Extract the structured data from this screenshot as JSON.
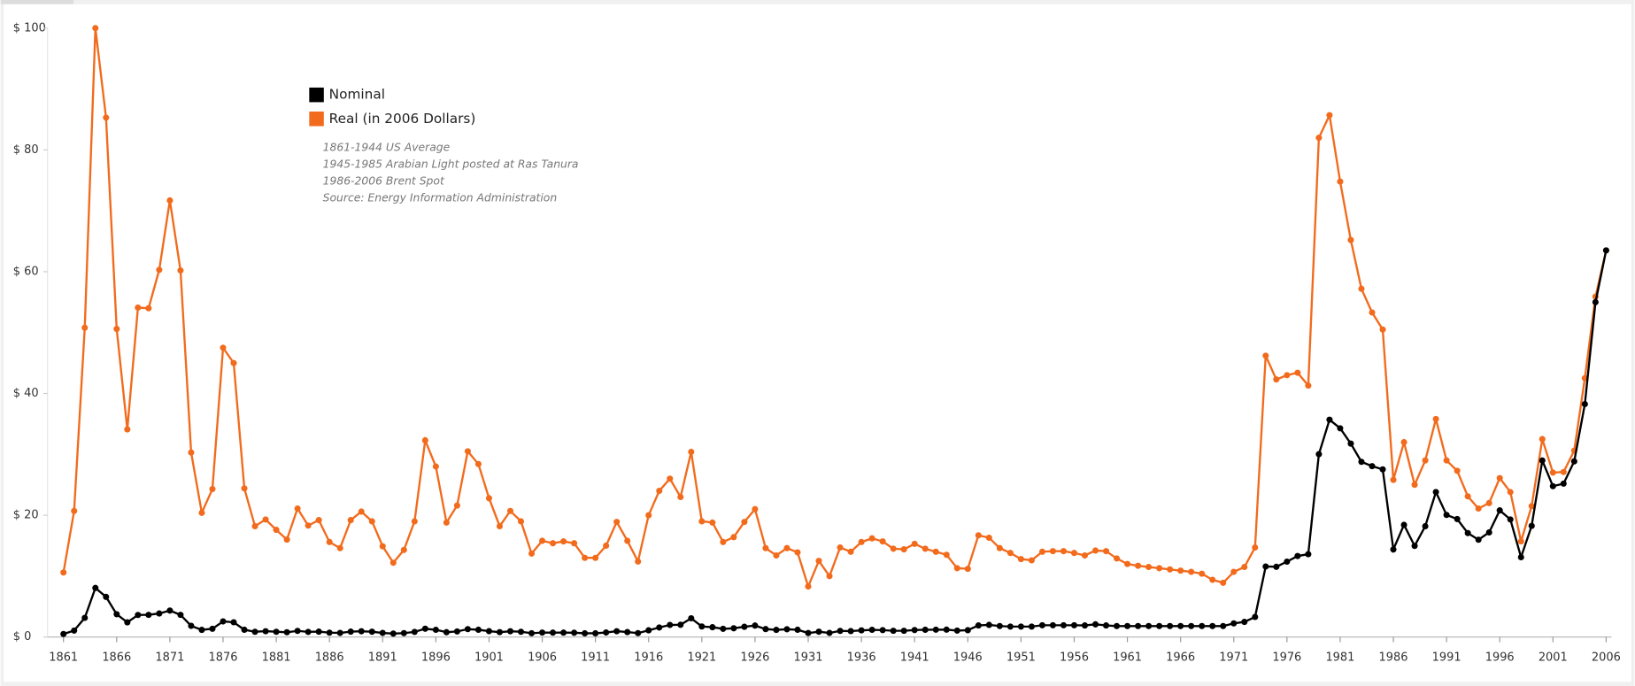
{
  "chart_data": {
    "type": "line",
    "annotations": [
      "1861-1944 US Average",
      "1945-1985 Arabian Light posted at Ras Tanura",
      "1986-2006 Brent Spot",
      "Source: Energy Information Administration"
    ],
    "x": [
      1861,
      1862,
      1863,
      1864,
      1865,
      1866,
      1867,
      1868,
      1869,
      1870,
      1871,
      1872,
      1873,
      1874,
      1875,
      1876,
      1877,
      1878,
      1879,
      1880,
      1881,
      1882,
      1883,
      1884,
      1885,
      1886,
      1887,
      1888,
      1889,
      1890,
      1891,
      1892,
      1893,
      1894,
      1895,
      1896,
      1897,
      1898,
      1899,
      1900,
      1901,
      1902,
      1903,
      1904,
      1905,
      1906,
      1907,
      1908,
      1909,
      1910,
      1911,
      1912,
      1913,
      1914,
      1915,
      1916,
      1917,
      1918,
      1919,
      1920,
      1921,
      1922,
      1923,
      1924,
      1925,
      1926,
      1927,
      1928,
      1929,
      1930,
      1931,
      1932,
      1933,
      1934,
      1935,
      1936,
      1937,
      1938,
      1939,
      1940,
      1941,
      1942,
      1943,
      1944,
      1945,
      1946,
      1947,
      1948,
      1949,
      1950,
      1951,
      1952,
      1953,
      1954,
      1955,
      1956,
      1957,
      1958,
      1959,
      1960,
      1961,
      1962,
      1963,
      1964,
      1965,
      1966,
      1967,
      1968,
      1969,
      1970,
      1971,
      1972,
      1973,
      1974,
      1975,
      1976,
      1977,
      1978,
      1979,
      1980,
      1981,
      1982,
      1983,
      1984,
      1985,
      1986,
      1987,
      1988,
      1989,
      1990,
      1991,
      1992,
      1993,
      1994,
      1995,
      1996,
      1997,
      1998,
      1999,
      2000,
      2001,
      2002,
      2003,
      2004,
      2005,
      2006
    ],
    "series": [
      {
        "name": "Nominal",
        "color": "#000000",
        "values": [
          0.49,
          1.05,
          3.15,
          8.06,
          6.59,
          3.74,
          2.41,
          3.62,
          3.64,
          3.86,
          4.34,
          3.64,
          1.83,
          1.17,
          1.35,
          2.56,
          2.42,
          1.19,
          0.86,
          0.95,
          0.86,
          0.78,
          1.0,
          0.84,
          0.88,
          0.71,
          0.67,
          0.88,
          0.94,
          0.87,
          0.67,
          0.56,
          0.64,
          0.84,
          1.36,
          1.18,
          0.79,
          0.91,
          1.29,
          1.19,
          0.96,
          0.8,
          0.94,
          0.86,
          0.62,
          0.73,
          0.72,
          0.72,
          0.7,
          0.61,
          0.61,
          0.74,
          0.95,
          0.81,
          0.64,
          1.1,
          1.56,
          1.98,
          2.01,
          3.07,
          1.73,
          1.61,
          1.34,
          1.43,
          1.68,
          1.88,
          1.3,
          1.17,
          1.27,
          1.19,
          0.65,
          0.87,
          0.67,
          1.0,
          0.97,
          1.09,
          1.18,
          1.13,
          1.02,
          1.02,
          1.14,
          1.19,
          1.2,
          1.21,
          1.05,
          1.12,
          1.9,
          1.99,
          1.8,
          1.71,
          1.71,
          1.71,
          1.93,
          1.93,
          1.93,
          1.93,
          1.9,
          2.08,
          1.9,
          1.8,
          1.8,
          1.8,
          1.8,
          1.8,
          1.8,
          1.8,
          1.8,
          1.8,
          1.8,
          1.8,
          2.24,
          2.48,
          3.29,
          11.58,
          11.53,
          12.38,
          13.3,
          13.6,
          30.03,
          35.69,
          34.28,
          31.76,
          28.77,
          28.06,
          27.53,
          14.38,
          18.42,
          14.96,
          18.2,
          23.81,
          20.05,
          19.37,
          17.07,
          15.98,
          17.18,
          20.8,
          19.3,
          13.11,
          18.25,
          28.98,
          24.77,
          25.19,
          28.85,
          38.26,
          55.0,
          63.5
        ]
      },
      {
        "name": "Real (in 2006 Dollars)",
        "color": "#f26b1d",
        "values": [
          10.6,
          20.7,
          50.8,
          100,
          85.3,
          50.6,
          34.1,
          54.1,
          54.0,
          60.3,
          71.7,
          60.2,
          30.3,
          20.4,
          24.3,
          47.5,
          45.0,
          24.4,
          18.2,
          19.3,
          17.6,
          16.0,
          21.1,
          18.3,
          19.2,
          15.6,
          14.6,
          19.2,
          20.6,
          19.0,
          14.9,
          12.2,
          14.3,
          19.0,
          32.3,
          28.0,
          18.8,
          21.6,
          30.5,
          28.4,
          22.8,
          18.2,
          20.7,
          19.0,
          13.7,
          15.8,
          15.4,
          15.7,
          15.4,
          13.0,
          13.0,
          15.0,
          18.9,
          15.8,
          12.4,
          20.0,
          24.0,
          26.0,
          23.0,
          30.4,
          19.0,
          18.8,
          15.6,
          16.4,
          18.9,
          21.0,
          14.6,
          13.4,
          14.6,
          13.9,
          8.3,
          12.5,
          10.0,
          14.7,
          14.0,
          15.6,
          16.2,
          15.7,
          14.5,
          14.4,
          15.3,
          14.5,
          14.0,
          13.5,
          11.3,
          11.2,
          16.7,
          16.3,
          14.6,
          13.8,
          12.8,
          12.6,
          14.0,
          14.1,
          14.1,
          13.8,
          13.4,
          14.2,
          14.1,
          12.9,
          12.0,
          11.7,
          11.5,
          11.3,
          11.1,
          10.9,
          10.7,
          10.4,
          9.4,
          8.9,
          10.7,
          11.5,
          14.7,
          46.2,
          42.3,
          43.0,
          43.4,
          41.3,
          82.0,
          85.7,
          74.8,
          65.2,
          57.2,
          53.3,
          50.5,
          25.8,
          32.0,
          25.0,
          29.0,
          35.8,
          29.0,
          27.3,
          23.1,
          21.1,
          22.0,
          26.1,
          23.8,
          15.7,
          21.5,
          32.5,
          27.0,
          27.1,
          30.6,
          42.5,
          55.9,
          63.5
        ]
      }
    ],
    "xlim": [
      1859.5,
      2006.5
    ],
    "xticks": [
      1861,
      1866,
      1871,
      1876,
      1881,
      1886,
      1891,
      1896,
      1901,
      1906,
      1911,
      1916,
      1921,
      1926,
      1931,
      1936,
      1941,
      1946,
      1951,
      1956,
      1961,
      1966,
      1971,
      1976,
      1981,
      1986,
      1991,
      1996,
      2001,
      2006
    ],
    "ylim": [
      0,
      100
    ],
    "yticks": [
      {
        "value": 0,
        "label": "$ 0"
      },
      {
        "value": 20,
        "label": "$ 20"
      },
      {
        "value": 40,
        "label": "$ 40"
      },
      {
        "value": 60,
        "label": "$ 60"
      },
      {
        "value": 80,
        "label": "$ 80"
      },
      {
        "value": 100,
        "label": "$ 100"
      }
    ]
  }
}
